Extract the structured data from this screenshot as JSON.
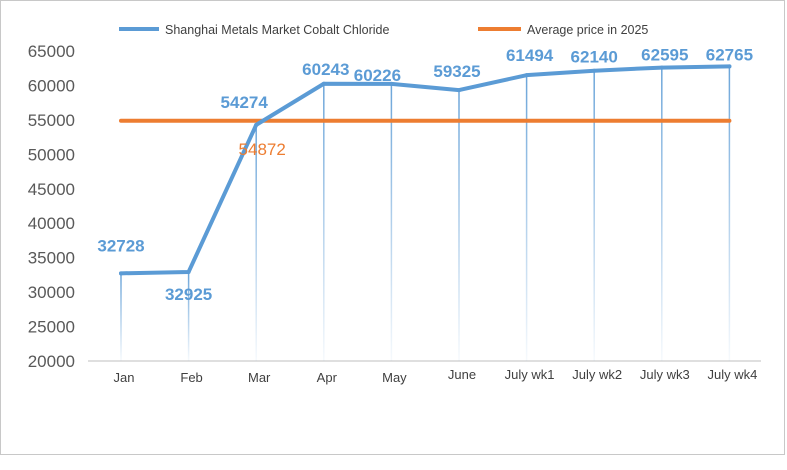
{
  "chart_data": {
    "type": "line",
    "categories": [
      "Jan",
      "Feb",
      "Mar",
      "Apr",
      "May",
      "June",
      "July wk1",
      "July wk2",
      "July wk3",
      "July wk4"
    ],
    "series": [
      {
        "name": "Shanghai Metals Market Cobalt Chloride",
        "values": [
          32728,
          32925,
          54274,
          60243,
          60226,
          59325,
          61494,
          62140,
          62595,
          62765
        ],
        "color": "#5B9BD5",
        "data_labels": [
          "32728",
          "32925",
          "54274",
          "60243",
          "60226",
          "59325",
          "61494",
          "62140",
          "62595",
          "62765"
        ]
      },
      {
        "name": "Average price in 2025",
        "values": [
          54872,
          54872,
          54872,
          54872,
          54872,
          54872,
          54872,
          54872,
          54872,
          54872
        ],
        "color": "#ED7D31",
        "data_label": "54872"
      }
    ],
    "ylim": [
      20000,
      65000
    ],
    "yticks": [
      "20000",
      "25000",
      "30000",
      "35000",
      "40000",
      "45000",
      "50000",
      "55000",
      "60000",
      "65000"
    ],
    "title": "",
    "xlabel": "",
    "ylabel": "",
    "legend_position": "top",
    "grid": false,
    "drop_lines": true
  }
}
